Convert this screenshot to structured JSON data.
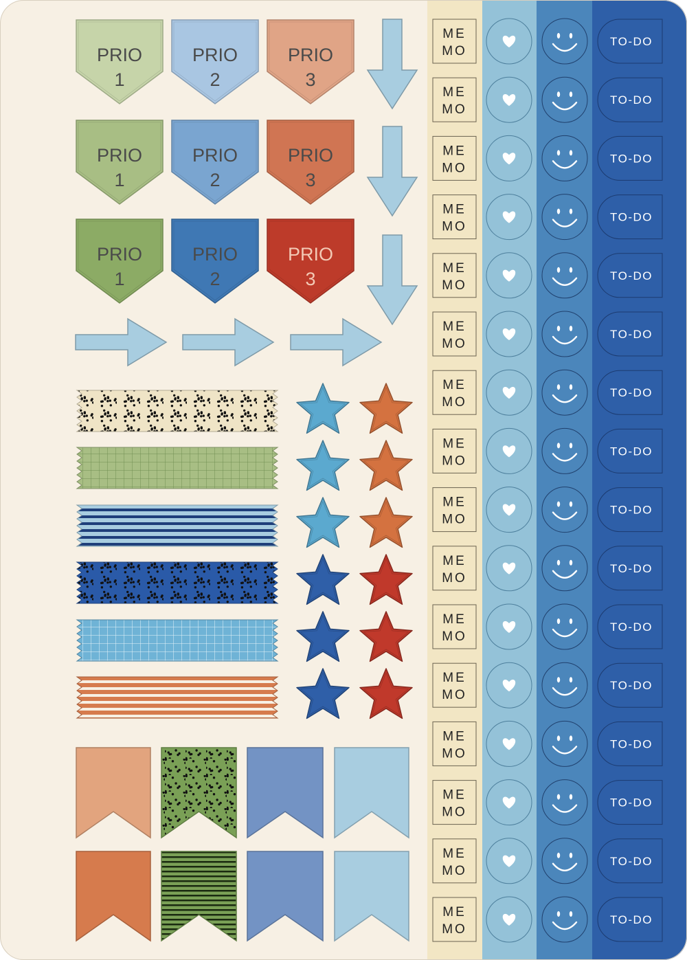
{
  "sheet": {
    "background": "#f7f0e4",
    "prio_rows": [
      {
        "variant": "light",
        "labels": [
          [
            "PRIO",
            "1"
          ],
          [
            "PRIO",
            "2"
          ],
          [
            "PRIO",
            "3"
          ]
        ],
        "colors": [
          "#c6d4a9",
          "#a9c6e2",
          "#e0a486"
        ]
      },
      {
        "variant": "medium",
        "labels": [
          [
            "PRIO",
            "1"
          ],
          [
            "PRIO",
            "2"
          ],
          [
            "PRIO",
            "3"
          ]
        ],
        "colors": [
          "#a8be84",
          "#7aa5d0",
          "#d07553"
        ]
      },
      {
        "variant": "dark",
        "labels": [
          [
            "PRIO",
            "1"
          ],
          [
            "PRIO",
            "2"
          ],
          [
            "PRIO",
            "3"
          ]
        ],
        "colors": [
          "#8cab65",
          "#3f78b4",
          "#bd3b2a"
        ]
      }
    ],
    "arrow_color": "#a8cde0",
    "arrows_down": 3,
    "arrows_right": 3,
    "washi_tapes": [
      {
        "pattern": "dots",
        "base": "#efe4c6",
        "ink": "#111111"
      },
      {
        "pattern": "grid",
        "base": "#a8be84",
        "ink": "#6f8e52"
      },
      {
        "pattern": "stripes",
        "base": "#a8cde0",
        "ink": "#1f3f7a"
      },
      {
        "pattern": "dots",
        "base": "#2a5aa8",
        "ink": "#111111"
      },
      {
        "pattern": "grid",
        "base": "#6fb3d6",
        "ink": "#e8f4fb"
      },
      {
        "pattern": "stripes",
        "base": "#d67b4d",
        "ink": "#f7f0e4"
      }
    ],
    "stars": [
      [
        "#5ba9cf",
        "#d47240"
      ],
      [
        "#5ba9cf",
        "#d47240"
      ],
      [
        "#5ba9cf",
        "#d47240"
      ],
      [
        "#2f5fa8",
        "#c0392b"
      ],
      [
        "#2f5fa8",
        "#c0392b"
      ],
      [
        "#2f5fa8",
        "#c0392b"
      ]
    ],
    "flags_top": [
      {
        "pattern": "solid",
        "color": "#e2a47e"
      },
      {
        "pattern": "dots",
        "color": "#7aa056"
      },
      {
        "pattern": "solid",
        "color": "#7393c4"
      },
      {
        "pattern": "solid",
        "color": "#a8cde0"
      }
    ],
    "flags_bottom": [
      {
        "pattern": "solid",
        "color": "#d67b4d"
      },
      {
        "pattern": "stripes",
        "color": "#7aa056"
      },
      {
        "pattern": "solid",
        "color": "#7393c4"
      },
      {
        "pattern": "solid",
        "color": "#a8cde0"
      }
    ],
    "columns": {
      "memo": {
        "line1": "ME",
        "line2": "MO",
        "bg": "#f2e6c4",
        "count": 16
      },
      "heart": {
        "icon": "heart-icon",
        "bg": "#94c2d8",
        "count": 16
      },
      "smiley": {
        "icon": "smiley-icon",
        "bg": "#4b86bb",
        "count": 16
      },
      "todo": {
        "label": "TO-DO",
        "bg": "#2e5fa8",
        "count": 16
      }
    }
  }
}
